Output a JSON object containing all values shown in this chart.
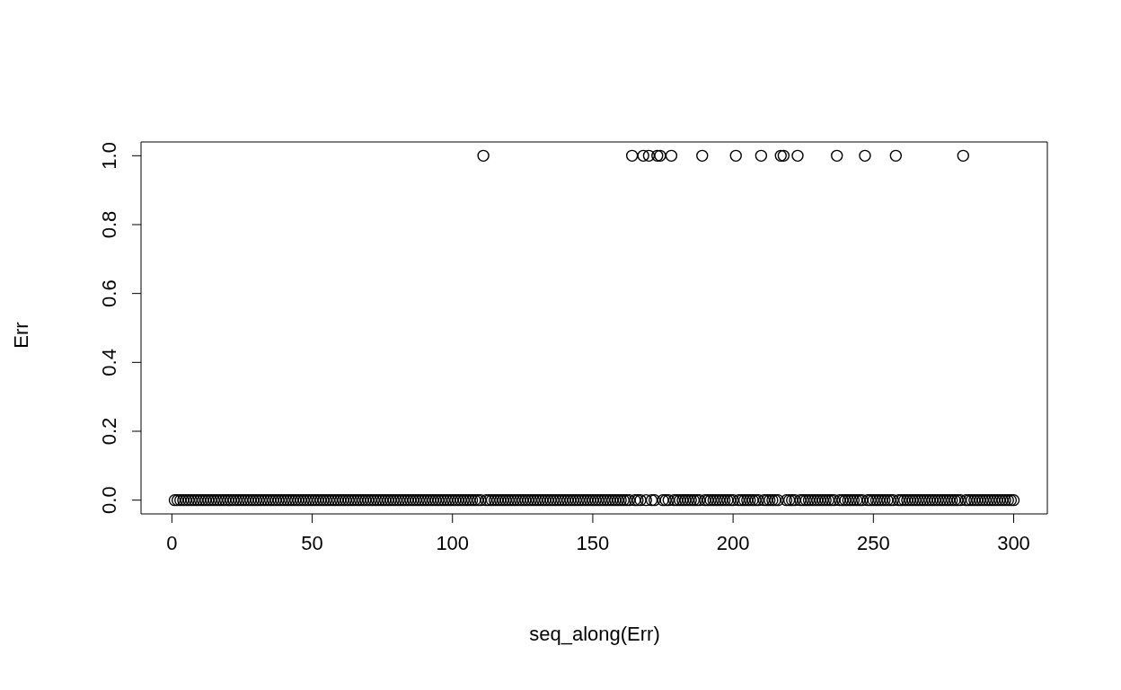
{
  "chart_data": {
    "type": "scatter",
    "xlabel": "seq_along(Err)",
    "ylabel": "Err",
    "marker": "circle",
    "color": "#000000",
    "xlim": [
      -11,
      312
    ],
    "ylim": [
      -0.04,
      1.04
    ],
    "xticks": [
      0,
      50,
      100,
      150,
      200,
      250,
      300
    ],
    "yticks": [
      {
        "value": 0,
        "label": "0.0"
      },
      0.2,
      0.4,
      0.6,
      0.8,
      {
        "value": 1,
        "label": "1.0"
      }
    ],
    "x": [
      1,
      2,
      3,
      4,
      5,
      6,
      7,
      8,
      9,
      10,
      11,
      12,
      13,
      14,
      15,
      16,
      17,
      18,
      19,
      20,
      21,
      22,
      23,
      24,
      25,
      26,
      27,
      28,
      29,
      30,
      31,
      32,
      33,
      34,
      35,
      36,
      37,
      38,
      39,
      40,
      41,
      42,
      43,
      44,
      45,
      46,
      47,
      48,
      49,
      50,
      51,
      52,
      53,
      54,
      55,
      56,
      57,
      58,
      59,
      60,
      61,
      62,
      63,
      64,
      65,
      66,
      67,
      68,
      69,
      70,
      71,
      72,
      73,
      74,
      75,
      76,
      77,
      78,
      79,
      80,
      81,
      82,
      83,
      84,
      85,
      86,
      87,
      88,
      89,
      90,
      91,
      92,
      93,
      94,
      95,
      96,
      97,
      98,
      99,
      100,
      101,
      102,
      103,
      104,
      105,
      106,
      107,
      108,
      109,
      110,
      111,
      112,
      113,
      114,
      115,
      116,
      117,
      118,
      119,
      120,
      121,
      122,
      123,
      124,
      125,
      126,
      127,
      128,
      129,
      130,
      131,
      132,
      133,
      134,
      135,
      136,
      137,
      138,
      139,
      140,
      141,
      142,
      143,
      144,
      145,
      146,
      147,
      148,
      149,
      150,
      151,
      152,
      153,
      154,
      155,
      156,
      157,
      158,
      159,
      160,
      161,
      162,
      163,
      164,
      165,
      166,
      167,
      168,
      169,
      170,
      171,
      172,
      173,
      174,
      175,
      176,
      177,
      178,
      179,
      180,
      181,
      182,
      183,
      184,
      185,
      186,
      187,
      188,
      189,
      190,
      191,
      192,
      193,
      194,
      195,
      196,
      197,
      198,
      199,
      200,
      201,
      202,
      203,
      204,
      205,
      206,
      207,
      208,
      209,
      210,
      211,
      212,
      213,
      214,
      215,
      216,
      217,
      218,
      219,
      220,
      221,
      222,
      223,
      224,
      225,
      226,
      227,
      228,
      229,
      230,
      231,
      232,
      233,
      234,
      235,
      236,
      237,
      238,
      239,
      240,
      241,
      242,
      243,
      244,
      245,
      246,
      247,
      248,
      249,
      250,
      251,
      252,
      253,
      254,
      255,
      256,
      257,
      258,
      259,
      260,
      261,
      262,
      263,
      264,
      265,
      266,
      267,
      268,
      269,
      270,
      271,
      272,
      273,
      274,
      275,
      276,
      277,
      278,
      279,
      280,
      281,
      282,
      283,
      284,
      285,
      286,
      287,
      288,
      289,
      290,
      291,
      292,
      293,
      294,
      295,
      296,
      297,
      298,
      299,
      300
    ],
    "values": [
      0,
      0,
      0,
      0,
      0,
      0,
      0,
      0,
      0,
      0,
      0,
      0,
      0,
      0,
      0,
      0,
      0,
      0,
      0,
      0,
      0,
      0,
      0,
      0,
      0,
      0,
      0,
      0,
      0,
      0,
      0,
      0,
      0,
      0,
      0,
      0,
      0,
      0,
      0,
      0,
      0,
      0,
      0,
      0,
      0,
      0,
      0,
      0,
      0,
      0,
      0,
      0,
      0,
      0,
      0,
      0,
      0,
      0,
      0,
      0,
      0,
      0,
      0,
      0,
      0,
      0,
      0,
      0,
      0,
      0,
      0,
      0,
      0,
      0,
      0,
      0,
      0,
      0,
      0,
      0,
      0,
      0,
      0,
      0,
      0,
      0,
      0,
      0,
      0,
      0,
      0,
      0,
      0,
      0,
      0,
      0,
      0,
      0,
      0,
      0,
      0,
      0,
      0,
      0,
      0,
      0,
      0,
      0,
      0,
      0,
      1,
      0,
      0,
      0,
      0,
      0,
      0,
      0,
      0,
      0,
      0,
      0,
      0,
      0,
      0,
      0,
      0,
      0,
      0,
      0,
      0,
      0,
      0,
      0,
      0,
      0,
      0,
      0,
      0,
      0,
      0,
      0,
      0,
      0,
      0,
      0,
      0,
      0,
      0,
      0,
      0,
      0,
      0,
      0,
      0,
      0,
      0,
      0,
      0,
      0,
      0,
      0,
      0,
      1,
      0,
      0,
      0,
      1,
      0,
      1,
      0,
      0,
      1,
      1,
      0,
      0,
      0,
      1,
      0,
      0,
      0,
      0,
      0,
      0,
      0,
      0,
      0,
      0,
      1,
      0,
      0,
      0,
      0,
      0,
      0,
      0,
      0,
      0,
      0,
      0,
      1,
      0,
      0,
      0,
      0,
      0,
      0,
      0,
      0,
      1,
      0,
      0,
      0,
      0,
      0,
      0,
      1,
      1,
      0,
      0,
      0,
      0,
      1,
      0,
      0,
      0,
      0,
      0,
      0,
      0,
      0,
      0,
      0,
      0,
      0,
      0,
      1,
      0,
      0,
      0,
      0,
      0,
      0,
      0,
      0,
      0,
      1,
      0,
      0,
      0,
      0,
      0,
      0,
      0,
      0,
      0,
      0,
      1,
      0,
      0,
      0,
      0,
      0,
      0,
      0,
      0,
      0,
      0,
      0,
      0,
      0,
      0,
      0,
      0,
      0,
      0,
      0,
      0,
      0,
      0,
      0,
      1,
      0,
      0,
      0,
      0,
      0,
      0,
      0,
      0,
      0,
      0,
      0,
      0,
      0,
      0,
      0,
      0,
      0,
      0
    ]
  }
}
